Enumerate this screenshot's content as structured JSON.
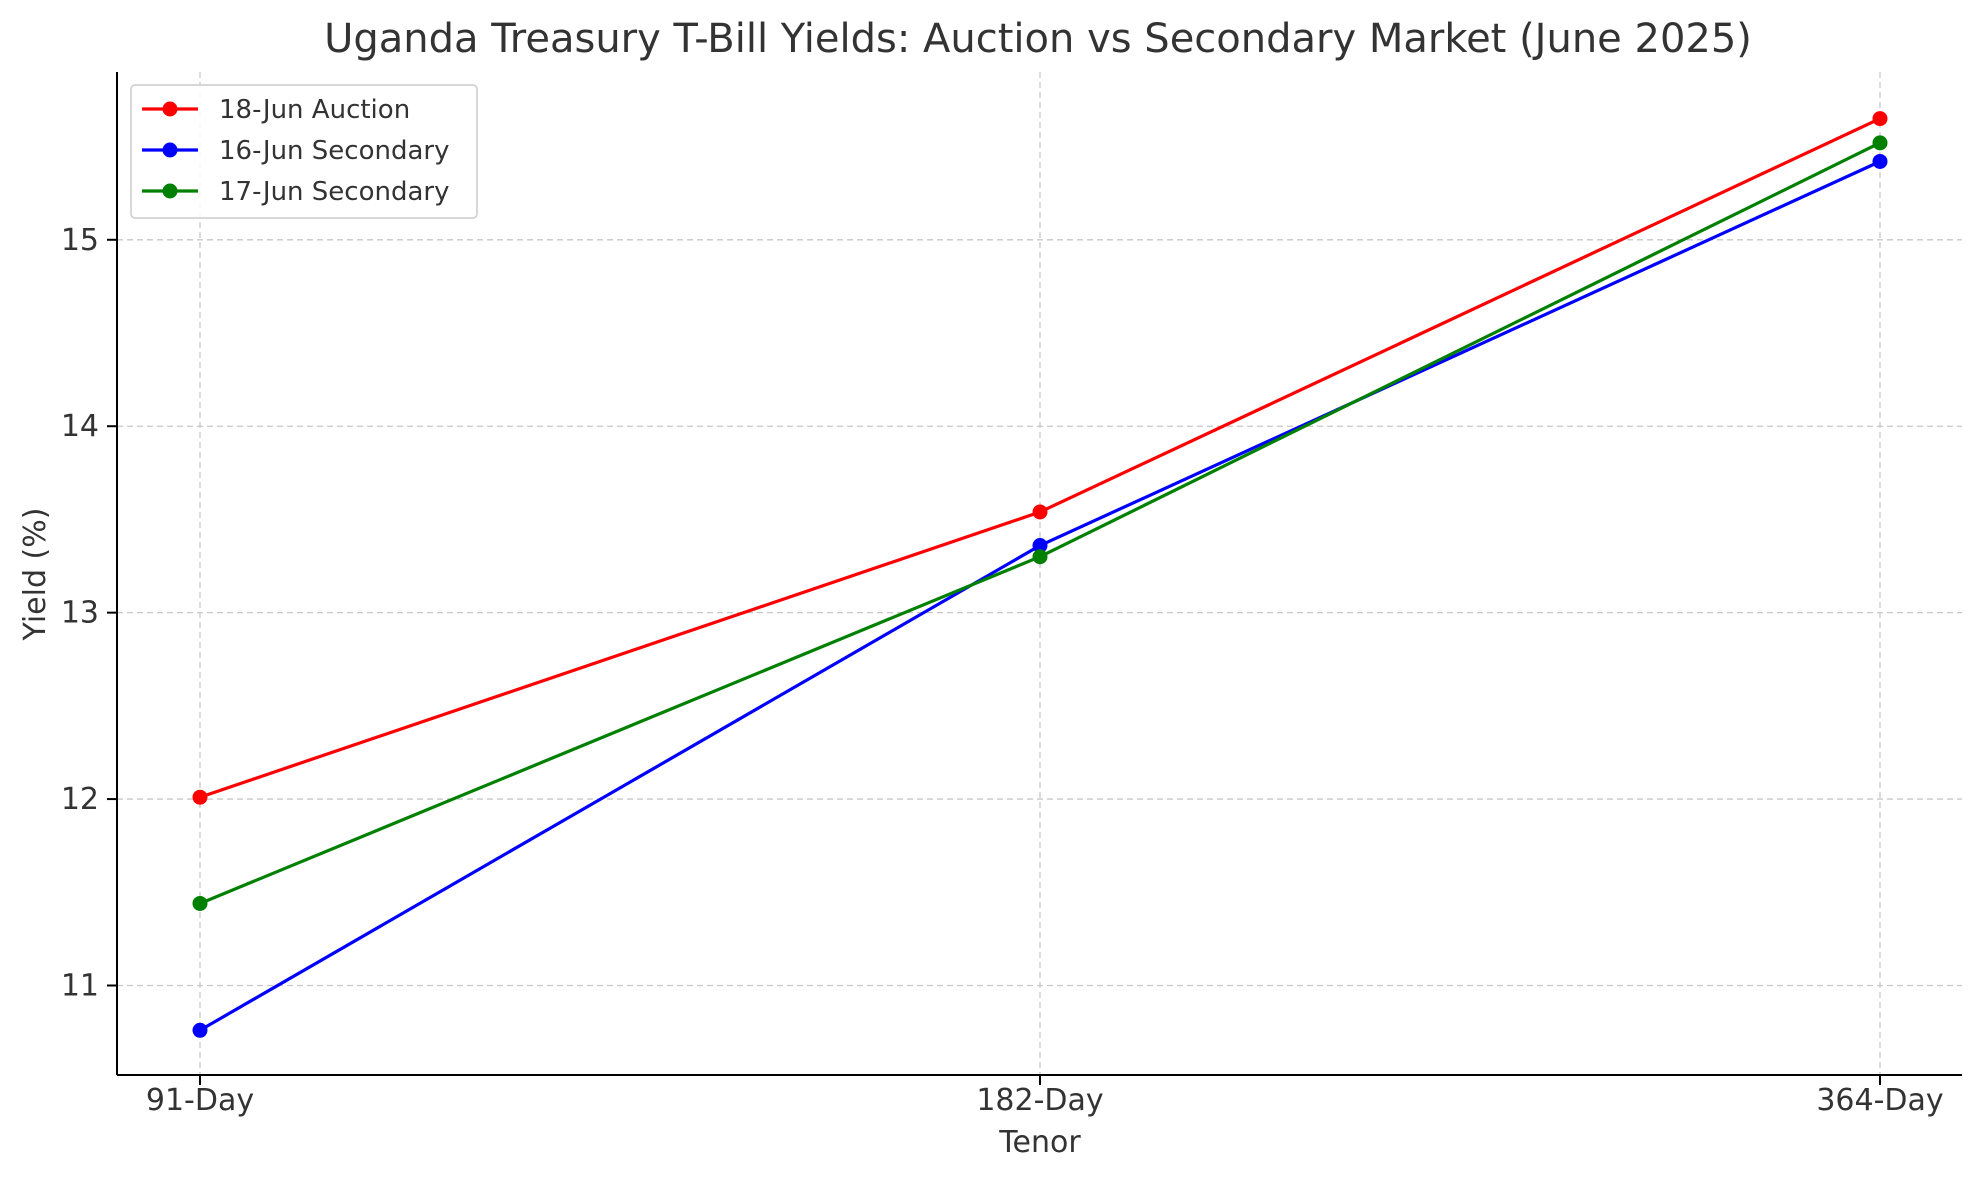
{
  "chart_data": {
    "type": "line",
    "title": "Uganda Treasury T-Bill Yields: Auction vs Secondary Market (June 2025)",
    "xlabel": "Tenor",
    "ylabel": "Yield (%)",
    "categories": [
      "91-Day",
      "182-Day",
      "364-Day"
    ],
    "ylim": [
      10.52,
      15.9
    ],
    "yticks": [
      11,
      12,
      13,
      14,
      15
    ],
    "grid": true,
    "legend_position": "top-left",
    "series": [
      {
        "name": "18-Jun Auction",
        "color": "#ff0000",
        "values": [
          12.01,
          13.54,
          15.65
        ]
      },
      {
        "name": "16-Jun Secondary",
        "color": "#0000ff",
        "values": [
          10.76,
          13.36,
          15.42
        ]
      },
      {
        "name": "17-Jun Secondary",
        "color": "#008000",
        "values": [
          11.44,
          13.3,
          15.52
        ]
      }
    ]
  }
}
